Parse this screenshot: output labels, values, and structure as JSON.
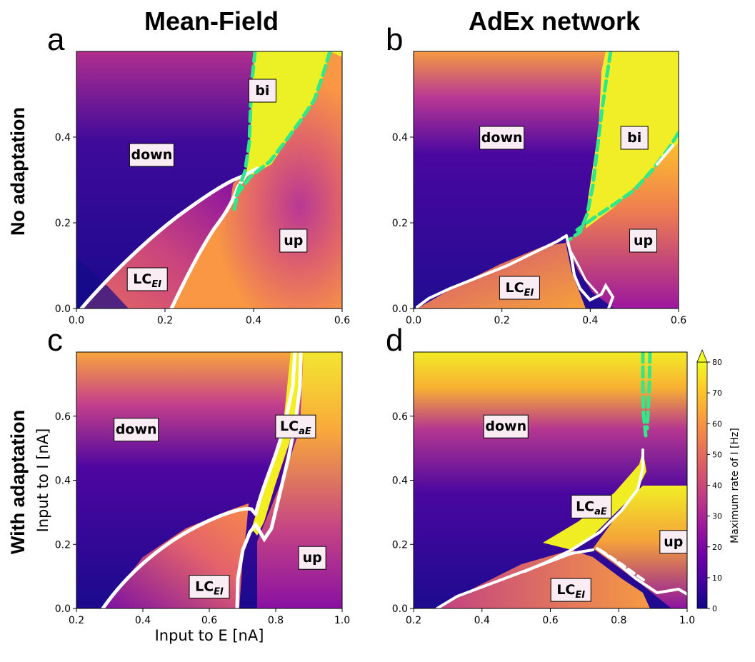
{
  "column_titles": [
    "Mean-Field",
    "AdEx network"
  ],
  "row_titles": [
    "No adaptation",
    "With adaptation"
  ],
  "colors": {
    "colormap": [
      "#0d0887",
      "#46039f",
      "#7201a8",
      "#9c179e",
      "#bd3786",
      "#d8576b",
      "#ed7953",
      "#fb9f3a",
      "#fdca26",
      "#f0f921"
    ],
    "boundary": "#ffffff",
    "bistable_boundary": "#2ee88a"
  },
  "colorbar": {
    "label": "Maximum rate of I [Hz]",
    "ticks": [
      "0",
      "10",
      "20",
      "30",
      "40",
      "50",
      "60",
      "70",
      "80"
    ],
    "range": [
      0,
      80
    ],
    "extend": "max"
  },
  "chart_data": [
    {
      "panel": "a",
      "type": "heatmap",
      "column": "Mean-Field",
      "row": "No adaptation",
      "xlim": [
        0.0,
        0.6
      ],
      "ylim": [
        0.0,
        0.6
      ],
      "xticks": [
        "0.0",
        "0.2",
        "0.4",
        "0.6"
      ],
      "yticks": [
        "0.0",
        "0.2",
        "0.4"
      ],
      "xlabel": "",
      "ylabel": "",
      "regions": [
        {
          "label": "down",
          "x": 0.17,
          "y": 0.36
        },
        {
          "label": "bi",
          "x": 0.42,
          "y": 0.51
        },
        {
          "label": "up",
          "x": 0.49,
          "y": 0.16
        },
        {
          "label": "LC",
          "sub": "EI",
          "x": 0.16,
          "y": 0.07
        }
      ]
    },
    {
      "panel": "b",
      "type": "heatmap",
      "column": "AdEx network",
      "row": "No adaptation",
      "xlim": [
        0.0,
        0.6
      ],
      "ylim": [
        0.0,
        0.6
      ],
      "xticks": [
        "0.0",
        "0.2",
        "0.4",
        "0.6"
      ],
      "yticks": [
        "0.0",
        "0.2",
        "0.4"
      ],
      "xlabel": "",
      "ylabel": "",
      "regions": [
        {
          "label": "down",
          "x": 0.2,
          "y": 0.4
        },
        {
          "label": "bi",
          "x": 0.5,
          "y": 0.4
        },
        {
          "label": "up",
          "x": 0.52,
          "y": 0.16
        },
        {
          "label": "LC",
          "sub": "EI",
          "x": 0.24,
          "y": 0.05
        }
      ]
    },
    {
      "panel": "c",
      "type": "heatmap",
      "column": "Mean-Field",
      "row": "With adaptation",
      "xlim": [
        0.2,
        1.0
      ],
      "ylim": [
        0.0,
        0.8
      ],
      "xticks": [
        "0.2",
        "0.4",
        "0.6",
        "0.8",
        "1.0"
      ],
      "yticks": [
        "0.0",
        "0.2",
        "0.4",
        "0.6"
      ],
      "xlabel": "Input to E [nA]",
      "ylabel": "Input to I [nA]",
      "regions": [
        {
          "label": "down",
          "x": 0.38,
          "y": 0.56
        },
        {
          "label": "LC",
          "sub": "aE",
          "x": 0.86,
          "y": 0.57
        },
        {
          "label": "up",
          "x": 0.91,
          "y": 0.16
        },
        {
          "label": "LC",
          "sub": "EI",
          "x": 0.6,
          "y": 0.07
        }
      ]
    },
    {
      "panel": "d",
      "type": "heatmap",
      "column": "AdEx network",
      "row": "With adaptation",
      "xlim": [
        0.2,
        1.0
      ],
      "ylim": [
        0.0,
        0.8
      ],
      "xticks": [
        "0.2",
        "0.4",
        "0.6",
        "0.8",
        "1.0"
      ],
      "yticks": [
        "0.0",
        "0.2",
        "0.4",
        "0.6"
      ],
      "xlabel": "",
      "ylabel": "",
      "regions": [
        {
          "label": "down",
          "x": 0.47,
          "y": 0.57
        },
        {
          "label": "LC",
          "sub": "aE",
          "x": 0.72,
          "y": 0.32
        },
        {
          "label": "up",
          "x": 0.96,
          "y": 0.21
        },
        {
          "label": "LC",
          "sub": "EI",
          "x": 0.66,
          "y": 0.06
        }
      ]
    }
  ]
}
